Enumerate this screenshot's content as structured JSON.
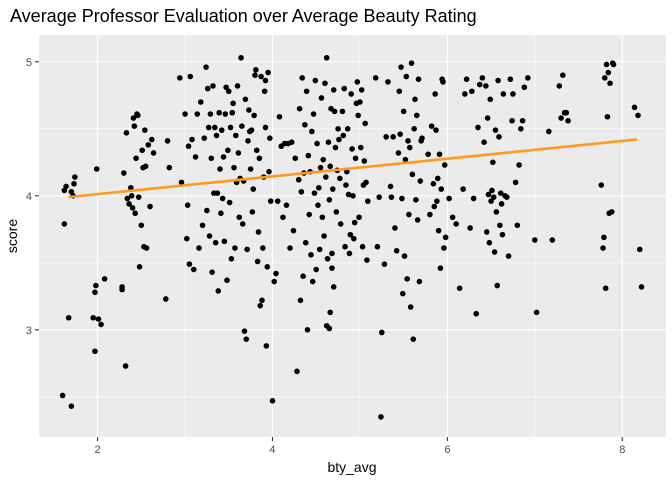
{
  "chart_data": {
    "type": "scatter",
    "title": "Average Professor Evaluation over Average Beauty Rating",
    "xlabel": "bty_avg",
    "ylabel": "score",
    "xlim": [
      1.33,
      8.5
    ],
    "ylim": [
      2.2,
      5.2
    ],
    "x_ticks": [
      2,
      4,
      6,
      8
    ],
    "y_ticks": [
      3,
      4,
      5
    ],
    "grid": true,
    "legend": "none",
    "colors": {
      "panel": "#ebebeb",
      "grid": "#ffffff",
      "point": "#000000",
      "trend": "#ff9a1f"
    },
    "trend_line": {
      "x": [
        1.667,
        8.167
      ],
      "y": [
        3.99,
        4.42
      ]
    },
    "points": [
      [
        1.6,
        2.51
      ],
      [
        1.62,
        3.79
      ],
      [
        1.62,
        4.04
      ],
      [
        1.64,
        4.07
      ],
      [
        1.67,
        3.09
      ],
      [
        1.7,
        2.43
      ],
      [
        1.7,
        4.03
      ],
      [
        1.72,
        4.0
      ],
      [
        1.73,
        4.09
      ],
      [
        1.74,
        4.14
      ],
      [
        1.95,
        3.09
      ],
      [
        1.97,
        2.84
      ],
      [
        1.97,
        3.28
      ],
      [
        1.98,
        3.33
      ],
      [
        1.99,
        4.2
      ],
      [
        2.01,
        3.08
      ],
      [
        2.04,
        3.04
      ],
      [
        2.08,
        3.38
      ],
      [
        2.28,
        3.32
      ],
      [
        2.28,
        3.3
      ],
      [
        2.3,
        4.17
      ],
      [
        2.32,
        2.73
      ],
      [
        2.33,
        4.47
      ],
      [
        2.34,
        3.98
      ],
      [
        2.36,
        3.94
      ],
      [
        2.38,
        4.06
      ],
      [
        2.39,
        4.0
      ],
      [
        2.4,
        3.91
      ],
      [
        2.41,
        4.58
      ],
      [
        2.42,
        4.52
      ],
      [
        2.43,
        3.87
      ],
      [
        2.44,
        4.28
      ],
      [
        2.45,
        4.61
      ],
      [
        2.46,
        4.6
      ],
      [
        2.47,
        3.99
      ],
      [
        2.48,
        3.47
      ],
      [
        2.5,
        3.78
      ],
      [
        2.51,
        4.34
      ],
      [
        2.52,
        4.21
      ],
      [
        2.53,
        3.62
      ],
      [
        2.54,
        4.49
      ],
      [
        2.55,
        4.22
      ],
      [
        2.56,
        3.61
      ],
      [
        2.58,
        4.38
      ],
      [
        2.6,
        3.92
      ],
      [
        2.62,
        4.42
      ],
      [
        2.64,
        4.32
      ],
      [
        2.78,
        3.23
      ],
      [
        2.82,
        4.21
      ],
      [
        2.8,
        4.41
      ],
      [
        2.94,
        4.88
      ],
      [
        2.96,
        4.1
      ],
      [
        3.0,
        4.61
      ],
      [
        3.02,
        3.68
      ],
      [
        3.03,
        3.93
      ],
      [
        3.04,
        4.37
      ],
      [
        3.05,
        3.49
      ],
      [
        3.06,
        4.89
      ],
      [
        3.08,
        4.42
      ],
      [
        3.1,
        3.45
      ],
      [
        3.12,
        4.29
      ],
      [
        3.14,
        4.61
      ],
      [
        3.16,
        3.61
      ],
      [
        3.18,
        4.7
      ],
      [
        3.2,
        3.78
      ],
      [
        3.22,
        4.43
      ],
      [
        3.24,
        4.96
      ],
      [
        3.25,
        3.89
      ],
      [
        3.26,
        4.8
      ],
      [
        3.27,
        4.51
      ],
      [
        3.28,
        3.7
      ],
      [
        3.29,
        4.61
      ],
      [
        3.3,
        4.28
      ],
      [
        3.31,
        3.43
      ],
      [
        3.32,
        4.82
      ],
      [
        3.33,
        4.02
      ],
      [
        3.34,
        4.51
      ],
      [
        3.35,
        3.65
      ],
      [
        3.36,
        4.45
      ],
      [
        3.37,
        4.02
      ],
      [
        3.38,
        3.29
      ],
      [
        3.39,
        4.62
      ],
      [
        3.4,
        4.2
      ],
      [
        3.41,
        3.87
      ],
      [
        3.42,
        4.49
      ],
      [
        3.43,
        3.98
      ],
      [
        3.44,
        4.29
      ],
      [
        3.45,
        3.66
      ],
      [
        3.46,
        4.61
      ],
      [
        3.47,
        4.81
      ],
      [
        3.48,
        3.37
      ],
      [
        3.49,
        4.34
      ],
      [
        3.5,
        4.78
      ],
      [
        3.51,
        3.95
      ],
      [
        3.52,
        4.51
      ],
      [
        3.53,
        3.53
      ],
      [
        3.54,
        4.62
      ],
      [
        3.55,
        4.69
      ],
      [
        3.56,
        4.21
      ],
      [
        3.57,
        3.61
      ],
      [
        3.58,
        4.45
      ],
      [
        3.59,
        4.1
      ],
      [
        3.6,
        4.82
      ],
      [
        3.61,
        4.32
      ],
      [
        3.62,
        3.84
      ],
      [
        3.63,
        4.13
      ],
      [
        3.64,
        5.03
      ],
      [
        3.65,
        4.52
      ],
      [
        3.66,
        3.79
      ],
      [
        3.67,
        4.11
      ],
      [
        3.68,
        2.99
      ],
      [
        3.69,
        4.72
      ],
      [
        3.7,
        2.93
      ],
      [
        3.71,
        3.6
      ],
      [
        3.72,
        4.41
      ],
      [
        3.73,
        4.64
      ],
      [
        3.74,
        4.48
      ],
      [
        3.75,
        4.2
      ],
      [
        3.76,
        4.49
      ],
      [
        3.77,
        3.88
      ],
      [
        3.78,
        4.05
      ],
      [
        3.79,
        4.6
      ],
      [
        3.8,
        4.9
      ],
      [
        3.81,
        4.94
      ],
      [
        3.82,
        4.34
      ],
      [
        3.83,
        3.51
      ],
      [
        3.84,
        3.73
      ],
      [
        3.85,
        4.28
      ],
      [
        3.86,
        3.18
      ],
      [
        3.87,
        4.89
      ],
      [
        3.88,
        3.22
      ],
      [
        3.89,
        3.61
      ],
      [
        3.9,
        4.14
      ],
      [
        3.91,
        4.78
      ],
      [
        3.92,
        4.51
      ],
      [
        3.93,
        2.88
      ],
      [
        3.94,
        3.47
      ],
      [
        3.95,
        4.92
      ],
      [
        3.96,
        4.18
      ],
      [
        3.97,
        4.43
      ],
      [
        3.98,
        3.96
      ],
      [
        3.92,
        4.86
      ],
      [
        4.0,
        2.47
      ],
      [
        4.02,
        3.36
      ],
      [
        4.04,
        3.42
      ],
      [
        4.06,
        3.96
      ],
      [
        4.08,
        4.59
      ],
      [
        4.1,
        4.37
      ],
      [
        4.12,
        3.84
      ],
      [
        4.14,
        4.39
      ],
      [
        4.16,
        3.93
      ],
      [
        4.18,
        4.39
      ],
      [
        4.2,
        3.61
      ],
      [
        4.22,
        4.4
      ],
      [
        4.24,
        3.74
      ],
      [
        4.26,
        4.28
      ],
      [
        4.28,
        2.69
      ],
      [
        4.3,
        4.12
      ],
      [
        4.31,
        4.65
      ],
      [
        4.32,
        3.22
      ],
      [
        4.33,
        4.03
      ],
      [
        4.34,
        4.88
      ],
      [
        4.35,
        3.4
      ],
      [
        4.36,
        4.17
      ],
      [
        4.37,
        4.53
      ],
      [
        4.38,
        3.65
      ],
      [
        4.39,
        4.78
      ],
      [
        4.4,
        3.0
      ],
      [
        4.41,
        4.3
      ],
      [
        4.42,
        3.86
      ],
      [
        4.43,
        4.18
      ],
      [
        4.44,
        3.56
      ],
      [
        4.45,
        4.48
      ],
      [
        4.46,
        3.36
      ],
      [
        4.47,
        4.61
      ],
      [
        4.48,
        4.02
      ],
      [
        4.49,
        4.86
      ],
      [
        4.5,
        3.45
      ],
      [
        4.51,
        4.39
      ],
      [
        4.52,
        3.93
      ],
      [
        4.53,
        4.06
      ],
      [
        4.54,
        3.6
      ],
      [
        4.55,
        4.21
      ],
      [
        4.56,
        4.73
      ],
      [
        4.57,
        3.84
      ],
      [
        4.58,
        4.27
      ],
      [
        4.59,
        3.7
      ],
      [
        4.6,
        4.84
      ],
      [
        4.61,
        4.14
      ],
      [
        4.62,
        5.03
      ],
      [
        4.63,
        3.53
      ],
      [
        4.64,
        4.4
      ],
      [
        4.65,
        3.97
      ],
      [
        4.66,
        4.22
      ],
      [
        4.67,
        4.65
      ],
      [
        4.68,
        3.46
      ],
      [
        4.69,
        4.05
      ],
      [
        4.7,
        4.79
      ],
      [
        4.71,
        4.63
      ],
      [
        4.72,
        4.36
      ],
      [
        4.73,
        3.88
      ],
      [
        4.74,
        4.19
      ],
      [
        4.75,
        4.5
      ],
      [
        4.76,
        4.42
      ],
      [
        4.77,
        4.13
      ],
      [
        4.78,
        3.79
      ],
      [
        4.62,
        3.03
      ],
      [
        4.65,
        3.01
      ],
      [
        4.66,
        3.13
      ],
      [
        4.68,
        3.57
      ],
      [
        4.7,
        3.32
      ],
      [
        4.8,
        4.63
      ],
      [
        4.81,
        4.45
      ],
      [
        4.82,
        4.8
      ],
      [
        4.83,
        3.62
      ],
      [
        4.84,
        4.08
      ],
      [
        4.85,
        4.18
      ],
      [
        4.86,
        4.5
      ],
      [
        4.87,
        4.01
      ],
      [
        4.88,
        3.57
      ],
      [
        4.89,
        3.71
      ],
      [
        4.9,
        4.76
      ],
      [
        4.91,
        4.35
      ],
      [
        4.92,
        4.0
      ],
      [
        4.93,
        3.68
      ],
      [
        4.94,
        3.8
      ],
      [
        4.95,
        4.28
      ],
      [
        4.96,
        4.69
      ],
      [
        4.97,
        4.85
      ],
      [
        4.98,
        4.6
      ],
      [
        4.99,
        3.84
      ],
      [
        5.0,
        4.7
      ],
      [
        5.01,
        4.36
      ],
      [
        5.02,
        4.79
      ],
      [
        5.03,
        3.62
      ],
      [
        5.04,
        4.08
      ],
      [
        5.05,
        4.26
      ],
      [
        5.06,
        4.54
      ],
      [
        5.07,
        4.1
      ],
      [
        5.08,
        3.52
      ],
      [
        5.09,
        3.96
      ],
      [
        5.18,
        4.88
      ],
      [
        5.2,
        3.62
      ],
      [
        5.22,
        3.99
      ],
      [
        5.24,
        2.35
      ],
      [
        5.25,
        2.98
      ],
      [
        5.28,
        3.49
      ],
      [
        5.3,
        4.44
      ],
      [
        5.32,
        4.85
      ],
      [
        5.35,
        4.07
      ],
      [
        5.36,
        3.99
      ],
      [
        5.38,
        4.44
      ],
      [
        5.4,
        3.76
      ],
      [
        5.42,
        3.59
      ],
      [
        5.44,
        4.32
      ],
      [
        5.45,
        4.78
      ],
      [
        5.46,
        4.46
      ],
      [
        5.47,
        4.96
      ],
      [
        5.48,
        3.98
      ],
      [
        5.49,
        3.27
      ],
      [
        5.5,
        4.63
      ],
      [
        5.51,
        3.55
      ],
      [
        5.52,
        4.27
      ],
      [
        5.53,
        4.89
      ],
      [
        5.54,
        3.38
      ],
      [
        5.55,
        4.41
      ],
      [
        5.56,
        3.86
      ],
      [
        5.57,
        4.36
      ],
      [
        5.58,
        3.17
      ],
      [
        5.59,
        4.99
      ],
      [
        5.6,
        4.16
      ],
      [
        5.61,
        2.93
      ],
      [
        5.62,
        4.5
      ],
      [
        5.63,
        4.72
      ],
      [
        5.64,
        3.97
      ],
      [
        5.65,
        4.6
      ],
      [
        5.66,
        3.82
      ],
      [
        5.67,
        4.87
      ],
      [
        5.68,
        3.36
      ],
      [
        5.69,
        4.11
      ],
      [
        5.7,
        4.41
      ],
      [
        5.71,
        4.43
      ],
      [
        5.78,
        4.31
      ],
      [
        5.8,
        3.86
      ],
      [
        5.82,
        4.52
      ],
      [
        5.84,
        4.09
      ],
      [
        5.85,
        3.92
      ],
      [
        5.86,
        4.76
      ],
      [
        5.87,
        4.49
      ],
      [
        5.88,
        3.96
      ],
      [
        5.89,
        4.13
      ],
      [
        5.9,
        3.74
      ],
      [
        5.91,
        4.31
      ],
      [
        5.92,
        3.46
      ],
      [
        5.93,
        4.05
      ],
      [
        5.94,
        4.87
      ],
      [
        5.95,
        4.85
      ],
      [
        5.96,
        3.61
      ],
      [
        5.97,
        4.23
      ],
      [
        5.98,
        3.69
      ],
      [
        6.02,
        3.98
      ],
      [
        6.06,
        3.84
      ],
      [
        6.1,
        3.79
      ],
      [
        6.14,
        3.31
      ],
      [
        6.18,
        4.05
      ],
      [
        6.2,
        4.76
      ],
      [
        6.22,
        4.87
      ],
      [
        6.26,
        3.76
      ],
      [
        6.28,
        4.78
      ],
      [
        6.3,
        3.98
      ],
      [
        6.33,
        3.12
      ],
      [
        6.35,
        4.51
      ],
      [
        6.37,
        4.83
      ],
      [
        6.4,
        4.88
      ],
      [
        6.42,
        4.4
      ],
      [
        6.44,
        4.82
      ],
      [
        6.45,
        3.73
      ],
      [
        6.46,
        4.58
      ],
      [
        6.47,
        4.01
      ],
      [
        6.48,
        3.65
      ],
      [
        6.49,
        4.72
      ],
      [
        6.5,
        3.96
      ],
      [
        6.51,
        4.04
      ],
      [
        6.52,
        4.25
      ],
      [
        6.53,
        3.99
      ],
      [
        6.54,
        3.58
      ],
      [
        6.55,
        4.49
      ],
      [
        6.56,
        3.88
      ],
      [
        6.57,
        3.33
      ],
      [
        6.58,
        4.86
      ],
      [
        6.59,
        4.44
      ],
      [
        6.6,
        3.78
      ],
      [
        6.61,
        4.02
      ],
      [
        6.62,
        3.94
      ],
      [
        6.63,
        3.71
      ],
      [
        6.64,
        4.76
      ],
      [
        6.66,
        4.0
      ],
      [
        6.68,
        3.99
      ],
      [
        6.7,
        3.55
      ],
      [
        6.72,
        4.87
      ],
      [
        6.74,
        4.56
      ],
      [
        6.75,
        4.76
      ],
      [
        6.78,
        4.1
      ],
      [
        6.8,
        3.78
      ],
      [
        6.82,
        4.23
      ],
      [
        6.84,
        4.5
      ],
      [
        6.86,
        4.56
      ],
      [
        6.88,
        4.81
      ],
      [
        6.92,
        4.88
      ],
      [
        7.0,
        3.67
      ],
      [
        7.02,
        3.13
      ],
      [
        7.16,
        4.48
      ],
      [
        7.2,
        3.67
      ],
      [
        7.28,
        4.82
      ],
      [
        7.3,
        4.58
      ],
      [
        7.32,
        4.9
      ],
      [
        7.34,
        4.62
      ],
      [
        7.36,
        4.62
      ],
      [
        7.38,
        4.56
      ],
      [
        7.76,
        4.08
      ],
      [
        7.78,
        3.61
      ],
      [
        7.79,
        3.69
      ],
      [
        7.8,
        4.88
      ],
      [
        7.81,
        3.31
      ],
      [
        7.82,
        4.98
      ],
      [
        7.83,
        4.59
      ],
      [
        7.84,
        4.92
      ],
      [
        7.85,
        3.87
      ],
      [
        7.86,
        4.84
      ],
      [
        7.88,
        3.88
      ],
      [
        7.89,
        4.99
      ],
      [
        7.9,
        4.98
      ],
      [
        8.14,
        4.66
      ],
      [
        8.18,
        4.6
      ],
      [
        8.2,
        3.6
      ],
      [
        8.22,
        3.32
      ]
    ]
  }
}
